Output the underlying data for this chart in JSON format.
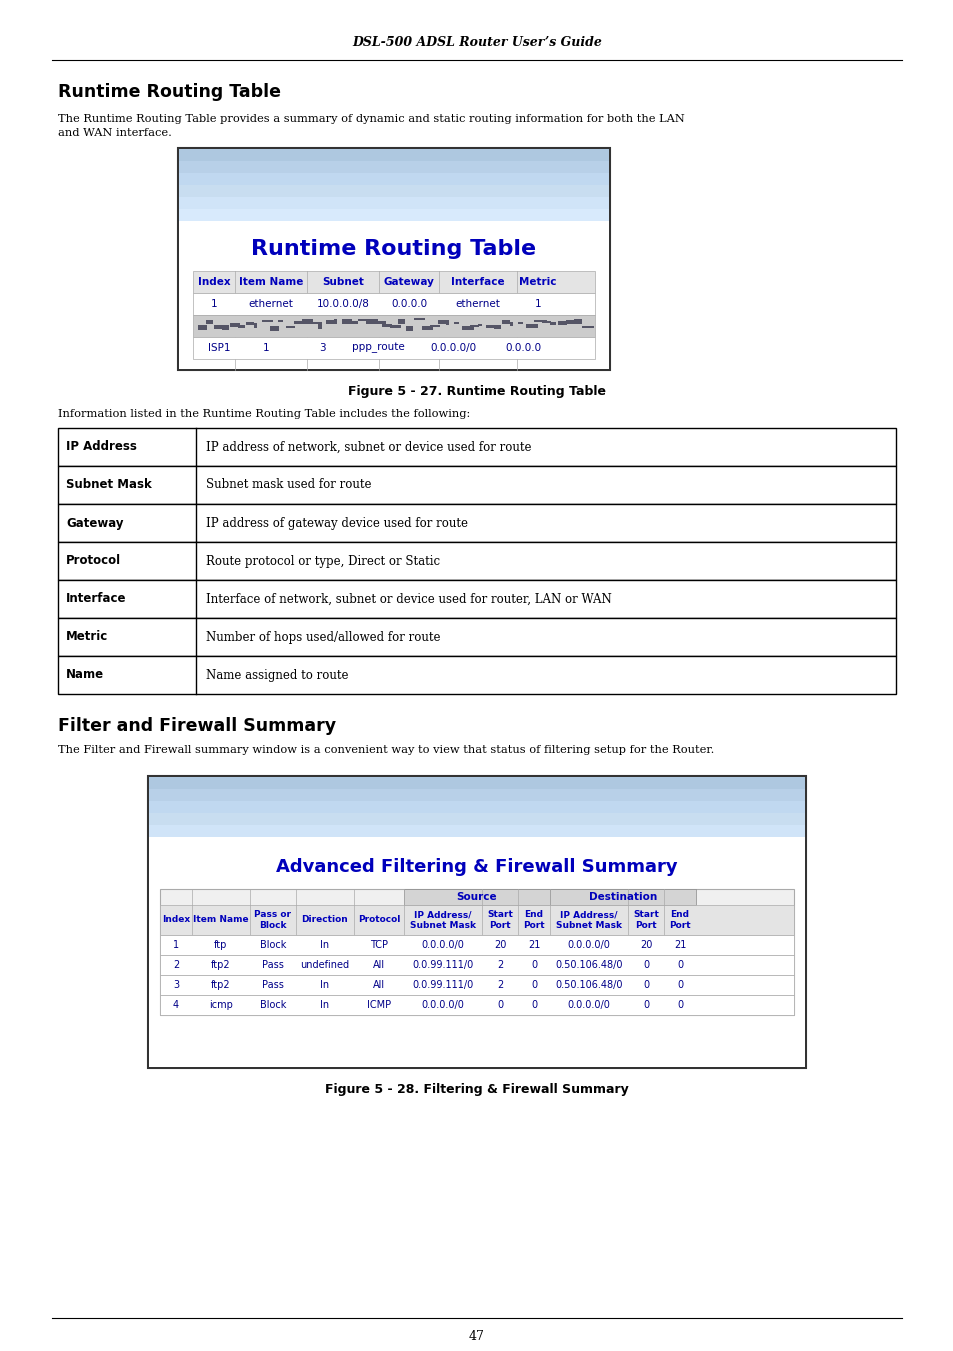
{
  "page_bg": "#ffffff",
  "header_title": "DSL-500 ADSL Router User’s Guide",
  "section1_title": "Runtime Routing Table",
  "section1_body1": "The Runtime Routing Table provides a summary of dynamic and static routing information for both the LAN",
  "section1_body2": "and WAN interface.",
  "fig1_caption": "Figure 5 - 27. Runtime Routing Table",
  "routing_table_title": "Runtime Routing Table",
  "routing_table_headers": [
    "Index",
    "Item Name",
    "Subnet",
    "Gateway",
    "Interface",
    "Metric"
  ],
  "routing_table_row1": [
    "1",
    "ethernet",
    "10.0.0.0/8",
    "0.0.0.0",
    "ethernet",
    "1"
  ],
  "routing_isp_row": [
    "ISP1",
    "1",
    "3",
    "ppp_route",
    "0.0.0.0/0",
    "0.0.0.0"
  ],
  "info_table_intro": "Information listed in the Runtime Routing Table includes the following:",
  "info_table_rows": [
    [
      "IP Address",
      "IP address of network, subnet or device used for route"
    ],
    [
      "Subnet Mask",
      "Subnet mask used for route"
    ],
    [
      "Gateway",
      "IP address of gateway device used for route"
    ],
    [
      "Protocol",
      "Route protocol or type, Direct or Static"
    ],
    [
      "Interface",
      "Interface of network, subnet or device used for router, LAN or WAN"
    ],
    [
      "Metric",
      "Number of hops used/allowed for route"
    ],
    [
      "Name",
      "Name assigned to route"
    ]
  ],
  "section2_title": "Filter and Firewall Summary",
  "section2_body": "The Filter and Firewall summary window is a convenient way to view that status of filtering setup for the Router.",
  "fig2_caption": "Figure 5 - 28. Filtering & Firewall Summary",
  "fw_table_title": "Advanced Filtering & Firewall Summary",
  "fw_rows": [
    [
      "1",
      "ftp",
      "Block",
      "In",
      "TCP",
      "0.0.0.0/0",
      "20",
      "21",
      "0.0.0.0/0",
      "20",
      "21"
    ],
    [
      "2",
      "ftp2",
      "Pass",
      "undefined",
      "All",
      "0.0.99.111/0",
      "2",
      "0",
      "0.50.106.48/0",
      "0",
      "0"
    ],
    [
      "3",
      "ftp2",
      "Pass",
      "In",
      "All",
      "0.0.99.111/0",
      "2",
      "0",
      "0.50.106.48/0",
      "0",
      "0"
    ],
    [
      "4",
      "icmp",
      "Block",
      "In",
      "ICMP",
      "0.0.0.0/0",
      "0",
      "0",
      "0.0.0.0/0",
      "0",
      "0"
    ]
  ],
  "page_number": "47",
  "blue_color": "#0000bb",
  "screenshot_top_bar1": "#b8d0e8",
  "screenshot_top_bar2": "#c8ddf0"
}
